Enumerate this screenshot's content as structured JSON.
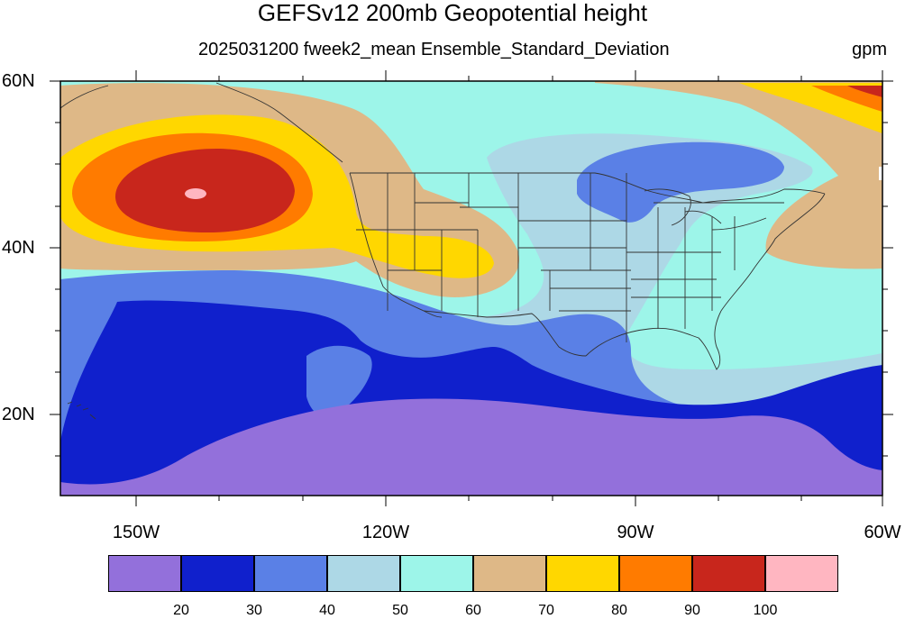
{
  "header": {
    "title": "GEFSv12 200mb Geopotential height",
    "subtitle": "2025031200 fweek2_mean Ensemble_Standard_Deviation",
    "units": "gpm"
  },
  "axes": {
    "lat_labels": [
      "60N",
      "40N",
      "20N"
    ],
    "lon_labels": [
      "150W",
      "120W",
      "90W",
      "60W"
    ]
  },
  "legend": {
    "labels": [
      "20",
      "30",
      "40",
      "50",
      "60",
      "70",
      "80",
      "90",
      "100"
    ],
    "colors": [
      "#9370db",
      "#1020cc",
      "#5a80e6",
      "#add8e6",
      "#9df5e9",
      "#deb887",
      "#ffd700",
      "#ff7b00",
      "#c8261c",
      "#ffb6c1"
    ]
  },
  "map_data": {
    "projection": "lat-lon",
    "lon_range": [
      -159,
      -60
    ],
    "lat_range": [
      10,
      60
    ],
    "field": "200mb geopotential height ensemble standard deviation",
    "contour_levels": [
      20,
      30,
      40,
      50,
      60,
      70,
      80,
      90,
      100
    ],
    "features": [
      "US state boundaries",
      "coastlines",
      "Hawaii"
    ]
  }
}
